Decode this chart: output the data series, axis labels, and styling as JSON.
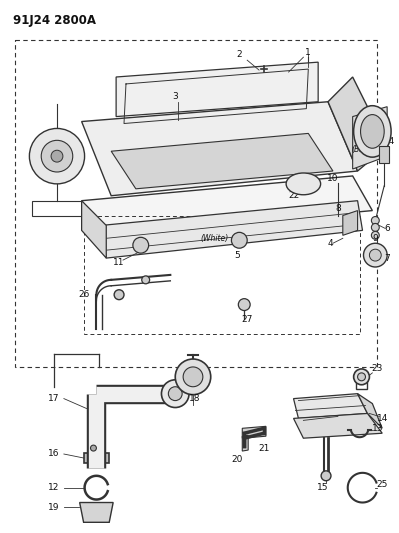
{
  "title": "91J24 2800A",
  "bg_color": "#ffffff",
  "fig_width": 3.99,
  "fig_height": 5.33,
  "dpi": 100,
  "line_color": "#333333",
  "text_color": "#111111"
}
